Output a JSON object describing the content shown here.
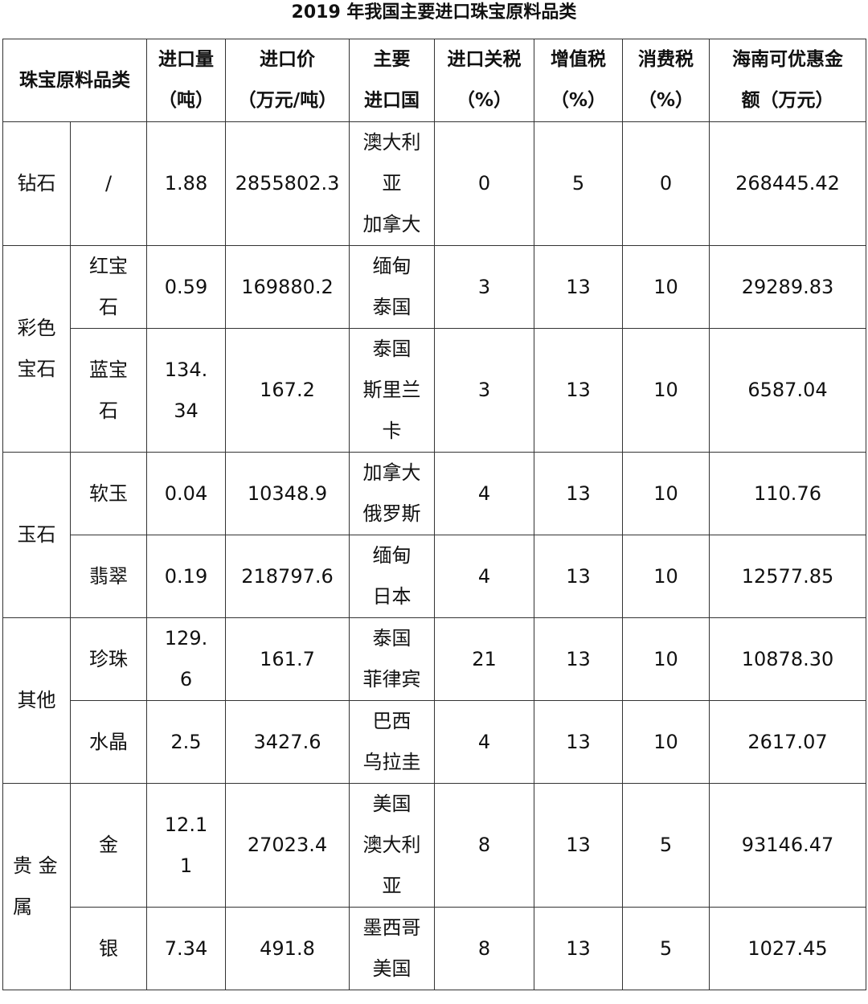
{
  "title": "2019 年我国主要进口珠宝原料品类",
  "headers": {
    "category": "珠宝原料品类",
    "quantity": [
      "进口量",
      "（吨）"
    ],
    "price": [
      "进口价",
      "（万元/吨）"
    ],
    "countries": [
      "主要",
      "进口国"
    ],
    "tariff": [
      "进口关税",
      "（%）"
    ],
    "vat": [
      "增值税",
      "（%）"
    ],
    "consumption": [
      "消费税",
      "（%）"
    ],
    "discount": [
      "海南可优惠金",
      "额（万元）"
    ]
  },
  "groups": [
    "钻石",
    "彩色宝石",
    "玉石",
    "其他",
    "贵 金 属"
  ],
  "rows": [
    {
      "item": "/",
      "quantity": "1.88",
      "price": "2855802.3",
      "countries": [
        "澳大利亚",
        "加拿大"
      ],
      "tariff": "0",
      "vat": "5",
      "consumption": "0",
      "discount": "268445.42"
    },
    {
      "item": "红宝石",
      "quantity": "0.59",
      "price": "169880.2",
      "countries": [
        "缅甸",
        "泰国"
      ],
      "tariff": "3",
      "vat": "13",
      "consumption": "10",
      "discount": "29289.83"
    },
    {
      "item": "蓝宝石",
      "quantity": "134.34",
      "price": "167.2",
      "countries": [
        "泰国",
        "斯里兰卡"
      ],
      "tariff": "3",
      "vat": "13",
      "consumption": "10",
      "discount": "6587.04"
    },
    {
      "item": "软玉",
      "quantity": "0.04",
      "price": "10348.9",
      "countries": [
        "加拿大",
        "俄罗斯"
      ],
      "tariff": "4",
      "vat": "13",
      "consumption": "10",
      "discount": "110.76"
    },
    {
      "item": "翡翠",
      "quantity": "0.19",
      "price": "218797.6",
      "countries": [
        "缅甸",
        "日本"
      ],
      "tariff": "4",
      "vat": "13",
      "consumption": "10",
      "discount": "12577.85"
    },
    {
      "item": "珍珠",
      "quantity": "129.6",
      "price": "161.7",
      "countries": [
        "泰国",
        "菲律宾"
      ],
      "tariff": "21",
      "vat": "13",
      "consumption": "10",
      "discount": "10878.30"
    },
    {
      "item": "水晶",
      "quantity": "2.5",
      "price": "3427.6",
      "countries": [
        "巴西",
        "乌拉圭"
      ],
      "tariff": "4",
      "vat": "13",
      "consumption": "10",
      "discount": "2617.07"
    },
    {
      "item": "金",
      "quantity": "12.11",
      "price": "27023.4",
      "countries": [
        "美国",
        "澳大利亚"
      ],
      "tariff": "8",
      "vat": "13",
      "consumption": "5",
      "discount": "93146.47"
    },
    {
      "item": "银",
      "quantity": "7.34",
      "price": "491.8",
      "countries": [
        "墨西哥",
        "美国"
      ],
      "tariff": "8",
      "vat": "13",
      "consumption": "5",
      "discount": "1027.45"
    }
  ]
}
